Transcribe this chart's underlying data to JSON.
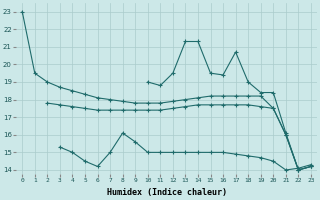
{
  "xlabel": "Humidex (Indice chaleur)",
  "x": [
    0,
    1,
    2,
    3,
    4,
    5,
    6,
    7,
    8,
    9,
    10,
    11,
    12,
    13,
    14,
    15,
    16,
    17,
    18,
    19,
    20,
    21,
    22,
    23
  ],
  "series1": [
    23,
    19.5,
    19.0,
    18.7,
    18.5,
    18.3,
    18.1,
    18.0,
    17.9,
    17.8,
    17.8,
    17.8,
    17.9,
    18.0,
    18.1,
    18.2,
    18.2,
    18.2,
    18.2,
    18.2,
    17.5,
    16.0,
    14.0,
    14.2
  ],
  "series2": [
    null,
    null,
    17.8,
    17.7,
    17.6,
    17.5,
    17.4,
    17.4,
    17.4,
    17.4,
    17.4,
    17.4,
    17.5,
    17.6,
    17.7,
    17.7,
    17.7,
    17.7,
    17.7,
    17.6,
    17.5,
    16.0,
    14.0,
    14.2
  ],
  "series3": [
    null,
    null,
    null,
    null,
    null,
    null,
    null,
    null,
    null,
    null,
    19.0,
    18.8,
    19.5,
    21.3,
    21.3,
    19.5,
    19.4,
    20.7,
    19.0,
    18.4,
    18.4,
    16.1,
    14.0,
    14.2
  ],
  "series4": [
    null,
    null,
    null,
    15.3,
    15.0,
    14.5,
    14.2,
    15.0,
    16.1,
    15.6,
    15.0,
    15.0,
    15.0,
    15.0,
    15.0,
    15.0,
    15.0,
    14.9,
    14.8,
    14.7,
    14.5,
    14.0,
    14.1,
    14.3
  ],
  "color": "#1f6b6b",
  "bg_color": "#cce8e8",
  "grid_color": "#aacccc",
  "ylim": [
    13.8,
    23.5
  ],
  "yticks": [
    14,
    15,
    16,
    17,
    18,
    19,
    20,
    21,
    22,
    23
  ],
  "xticks": [
    0,
    1,
    2,
    3,
    4,
    5,
    6,
    7,
    8,
    9,
    10,
    11,
    12,
    13,
    14,
    15,
    16,
    17,
    18,
    19,
    20,
    21,
    22,
    23
  ]
}
